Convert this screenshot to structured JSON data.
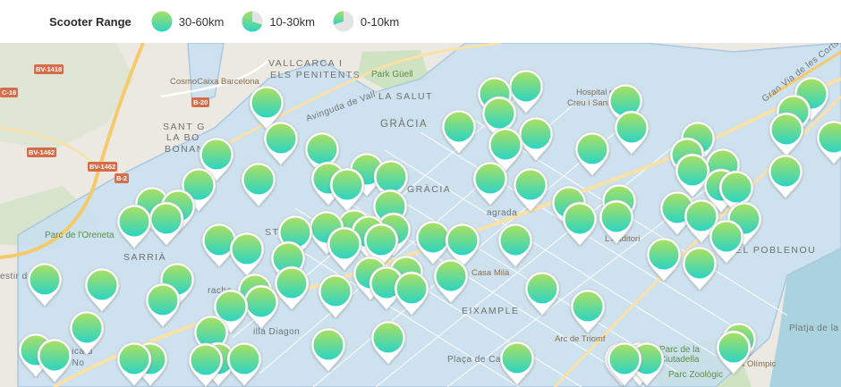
{
  "legend": {
    "title": "Scooter Range",
    "items": [
      {
        "label": "30-60km",
        "level": 1.0
      },
      {
        "label": "10-30km",
        "level": 0.6
      },
      {
        "label": "0-10km",
        "level": 0.3
      }
    ]
  },
  "colors": {
    "gradient_top": "#a8e063",
    "gradient_bottom": "#2dd4c4",
    "zone_fill": "#c8dff0",
    "zone_stroke": "#a9c8e2",
    "road_major": "#f6c96a",
    "water": "#aad3df",
    "park": "#cfe3c2"
  },
  "map_labels": {
    "vallcarca": "VALLCARCA I",
    "penitents": "ELS PENITENTS",
    "la_salut": "LA SALUT",
    "gracia": "GRÀCIA",
    "vila_gracia": "GRÀCIA",
    "sant_gervasi": "SANT G",
    "la_bo": "LA BO",
    "bonanova": "BONANOV",
    "sarria": "SARRIÀ",
    "eixample": "EIXAMPLE",
    "poblenou": "EL POBLENOU",
    "park_guell": "Park Güell",
    "cosmocaixa": "CosmoCaixa Barcelona",
    "hospital": "Hospital d",
    "hospital2": "Creu i Sant",
    "parc_oreneta": "Parc de l'Oreneta",
    "casa_mila": "Casa Milà",
    "arc_triomf": "Arc de Triomf",
    "auditori": "L'Auditori",
    "platja": "Platja de la No",
    "port_olimpic": "Port Olímpic",
    "politecnica": "at Politècnica d",
    "campus_nord": "- Campus No",
    "diagonal": "illa Diagon",
    "placa_catalunya": "Plaça de Catal",
    "parc_ciutadella": "Parc de la",
    "ciutadella2": "Ciutadella",
    "zoo": "Parc Zoològic",
    "gran_via": "Gran Via de les Corts Catal",
    "sagrada": "agrada",
    "estir": "estir de l",
    "tracho": "racho",
    "avinguda": "Avinguda de Vall",
    "st_s": "ST. S"
  },
  "road_shields": [
    "BV-1418",
    "C-16",
    "B-20",
    "BV-1462",
    "BV-1462",
    "B-2"
  ],
  "markers": [
    {
      "level": 1.0
    },
    {
      "level": 1.0
    },
    {
      "level": 1.0
    },
    {
      "level": 1.0
    },
    {
      "level": 1.0
    },
    {
      "level": 1.0
    },
    {
      "level": 1.0
    },
    {
      "level": 1.0
    },
    {
      "level": 1.0
    },
    {
      "level": 1.0
    },
    {
      "level": 1.0
    },
    {
      "level": 1.0
    },
    {
      "level": 1.0
    },
    {
      "level": 1.0
    },
    {
      "level": 1.0
    },
    {
      "level": 1.0
    },
    {
      "level": 1.0
    },
    {
      "level": 1.0
    },
    {
      "level": 1.0
    },
    {
      "level": 1.0
    },
    {
      "level": 1.0
    },
    {
      "level": 1.0
    },
    {
      "level": 1.0
    },
    {
      "level": 1.0
    },
    {
      "level": 1.0
    },
    {
      "level": 1.0
    },
    {
      "level": 1.0
    },
    {
      "level": 1.0
    },
    {
      "level": 1.0
    },
    {
      "level": 1.0
    },
    {
      "level": 1.0
    },
    {
      "level": 1.0
    },
    {
      "level": 1.0
    },
    {
      "level": 1.0
    },
    {
      "level": 1.0
    },
    {
      "level": 1.0
    },
    {
      "level": 1.0
    },
    {
      "level": 1.0
    },
    {
      "level": 1.0
    },
    {
      "level": 1.0
    },
    {
      "level": 1.0
    },
    {
      "level": 1.0
    },
    {
      "level": 1.0
    },
    {
      "level": 1.0
    },
    {
      "level": 1.0
    },
    {
      "level": 1.0
    },
    {
      "level": 1.0
    },
    {
      "level": 1.0
    },
    {
      "level": 1.0
    },
    {
      "level": 1.0
    },
    {
      "level": 1.0
    },
    {
      "level": 1.0
    },
    {
      "level": 1.0
    },
    {
      "level": 1.0
    },
    {
      "level": 1.0
    },
    {
      "level": 1.0
    },
    {
      "level": 1.0
    },
    {
      "level": 1.0
    },
    {
      "level": 1.0
    },
    {
      "level": 1.0
    },
    {
      "level": 1.0
    },
    {
      "level": 1.0
    },
    {
      "level": 1.0
    },
    {
      "level": 1.0
    },
    {
      "level": 1.0
    },
    {
      "level": 1.0
    },
    {
      "level": 1.0
    },
    {
      "level": 1.0
    },
    {
      "level": 1.0
    },
    {
      "level": 1.0
    },
    {
      "level": 1.0
    },
    {
      "level": 1.0
    },
    {
      "level": 1.0
    },
    {
      "level": 1.0
    },
    {
      "level": 1.0
    },
    {
      "level": 1.0
    },
    {
      "level": 1.0
    },
    {
      "level": 1.0
    },
    {
      "level": 1.0
    },
    {
      "level": 1.0
    },
    {
      "level": 1.0
    },
    {
      "level": 1.0
    },
    {
      "level": 1.0
    },
    {
      "level": 1.0
    },
    {
      "level": 1.0
    },
    {
      "level": 1.0
    },
    {
      "level": 1.0
    },
    {
      "level": 1.0
    },
    {
      "level": 1.0
    },
    {
      "level": 1.0
    },
    {
      "level": 1.0
    },
    {
      "level": 1.0
    },
    {
      "level": 1.0
    },
    {
      "level": 1.0
    },
    {
      "level": 1.0
    }
  ]
}
